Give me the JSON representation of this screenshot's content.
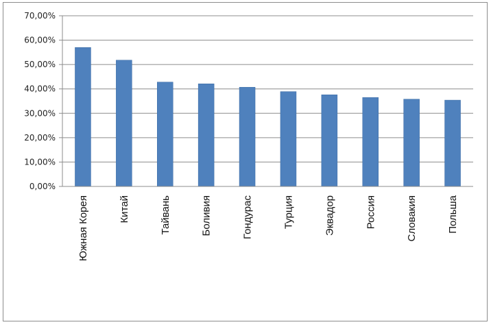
{
  "chart_data": {
    "type": "bar",
    "categories": [
      "Южная Корея",
      "Китай",
      "Тайвань",
      "Боливия",
      "Гондурас",
      "Турция",
      "Эквадор",
      "Россия",
      "Словакия",
      "Польша"
    ],
    "values": [
      57.0,
      51.8,
      42.8,
      42.1,
      40.7,
      38.9,
      37.6,
      36.5,
      35.8,
      35.4
    ],
    "ylim": [
      0,
      70
    ],
    "yticks": [
      "0,00%",
      "10,00%",
      "20,00%",
      "30,00%",
      "40,00%",
      "50,00%",
      "60,00%",
      "70,00%"
    ],
    "grid": true,
    "bar_color": "#4f81bd"
  }
}
